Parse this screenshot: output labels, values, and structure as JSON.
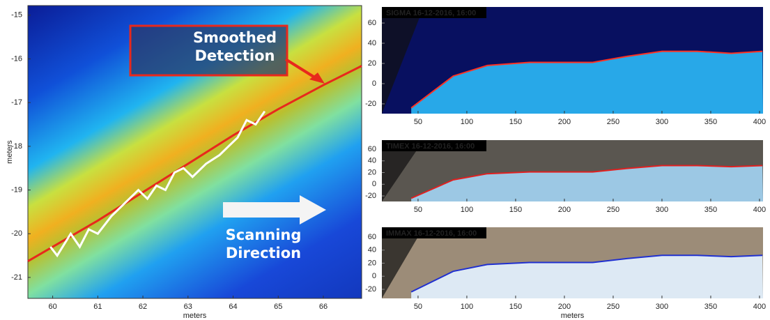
{
  "chart_data": [
    {
      "type": "line",
      "xlabel": "meters",
      "ylabel": "meters",
      "xlim": [
        59.45,
        66.85
      ],
      "ylim": [
        -21.48,
        -14.78
      ],
      "xticks": [
        60,
        61,
        62,
        63,
        64,
        65,
        66
      ],
      "yticks": [
        -15,
        -16,
        -17,
        -18,
        -19,
        -20,
        -21
      ],
      "annotations": [
        "Smoothed Detection",
        "Scanning Direction"
      ],
      "series": [
        {
          "color": "#e8281c",
          "x": [
            59.45,
            61,
            62,
            63,
            64,
            65,
            66,
            66.85
          ],
          "values": [
            -20.63,
            -19.7,
            -19.05,
            -18.4,
            -17.75,
            -17.15,
            -16.6,
            -16.16
          ]
        },
        {
          "color": "#ffffff",
          "x": [
            59.95,
            60.1,
            60.4,
            60.6,
            60.8,
            61.0,
            61.3,
            61.6,
            61.9,
            62.1,
            62.3,
            62.5,
            62.7,
            62.9,
            63.1,
            63.4,
            63.7,
            63.9,
            64.1,
            64.3,
            64.5,
            64.7
          ],
          "values": [
            -20.3,
            -20.5,
            -20.0,
            -20.3,
            -19.9,
            -20.0,
            -19.6,
            -19.3,
            -19.0,
            -19.2,
            -18.9,
            -19.0,
            -18.6,
            -18.5,
            -18.7,
            -18.4,
            -18.2,
            -18.0,
            -17.8,
            -17.4,
            -17.5,
            -17.2
          ]
        }
      ]
    },
    {
      "type": "line",
      "title": "SIGMA 16-12-2016, 16:00",
      "xlim": [
        12.9,
        403.6
      ],
      "ylim": [
        -29.7,
        75.9
      ],
      "xticks": [
        50,
        100,
        150,
        200,
        250,
        300,
        350,
        400
      ],
      "yticks": [
        60,
        40,
        20,
        0,
        -20
      ],
      "series": [
        {
          "color": "#ff3020",
          "x": [
            43,
            86,
            121,
            164,
            229,
            264,
            300,
            336,
            371,
            403
          ],
          "values": [
            -24,
            7.5,
            18,
            21,
            21,
            27,
            32,
            32,
            30,
            32
          ]
        }
      ]
    },
    {
      "type": "line",
      "title": "TIMEX 16-12-2016, 16:00",
      "xlim": [
        12.9,
        403.6
      ],
      "ylim": [
        -29.5,
        75.5
      ],
      "xticks": [
        50,
        100,
        150,
        200,
        250,
        300,
        350,
        400
      ],
      "yticks": [
        60,
        40,
        20,
        0,
        -20
      ],
      "series": [
        {
          "color": "#e02020",
          "x": [
            43,
            86,
            121,
            164,
            229,
            264,
            300,
            336,
            371,
            403
          ],
          "values": [
            -24,
            7.5,
            18,
            21,
            21,
            27,
            32,
            32,
            30,
            32
          ]
        }
      ]
    },
    {
      "type": "line",
      "title": "IMMAX 16-12-2016, 16:00",
      "xlabel": "meters",
      "xlim": [
        12.9,
        403.6
      ],
      "ylim": [
        -33.9,
        74.9
      ],
      "xticks": [
        50,
        100,
        150,
        200,
        250,
        300,
        350,
        400
      ],
      "yticks": [
        60,
        40,
        20,
        0,
        -20
      ],
      "series": [
        {
          "color": "#2030d0",
          "x": [
            43,
            86,
            121,
            164,
            229,
            264,
            300,
            336,
            371,
            403
          ],
          "values": [
            -24,
            7.5,
            18,
            21,
            21,
            27,
            32,
            32,
            30,
            32
          ]
        }
      ]
    }
  ]
}
